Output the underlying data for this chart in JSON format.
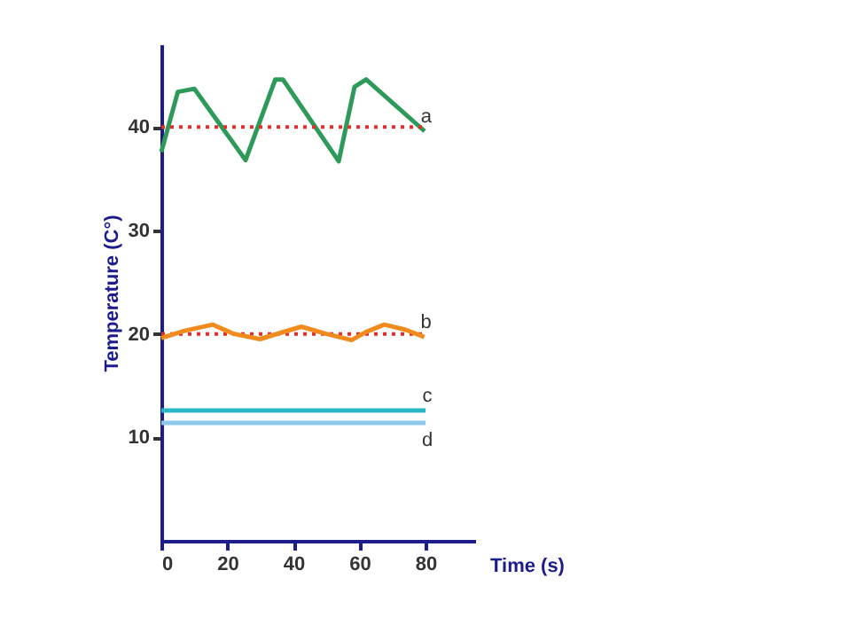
{
  "chart_data": {
    "type": "line",
    "xlabel": "Time (s)",
    "ylabel": "Temperature (C°)",
    "xlim": [
      0,
      95
    ],
    "ylim": [
      0,
      48
    ],
    "xticks": [
      0,
      20,
      40,
      60,
      80
    ],
    "yticks": [
      10,
      20,
      30,
      40
    ],
    "grid": false,
    "marker": "none",
    "line_style": "solid",
    "series": [
      {
        "name": "a",
        "color": "#2e9a5a",
        "x": [
          0,
          5,
          10,
          25.5,
          34.5,
          36.8,
          53.7,
          58.5,
          62,
          79.7
        ],
        "values": [
          37.6,
          43.4,
          43.7,
          36.8,
          44.6,
          44.6,
          36.7,
          43.9,
          44.6,
          39.6
        ]
      },
      {
        "name": "b",
        "color": "#f08c1e",
        "x": [
          0,
          7,
          15.6,
          22,
          29.9,
          36,
          42.4,
          50,
          57.6,
          62,
          67.5,
          74,
          79.6
        ],
        "values": [
          19.6,
          20.3,
          20.9,
          20.0,
          19.5,
          20.1,
          20.7,
          20.0,
          19.4,
          20.2,
          20.9,
          20.4,
          19.7
        ]
      },
      {
        "name": "c",
        "color": "#2ab8c8",
        "x": [
          0,
          80
        ],
        "values": [
          12.6,
          12.6
        ]
      },
      {
        "name": "d",
        "color": "#8cc8ec",
        "x": [
          0,
          80
        ],
        "values": [
          11.4,
          11.4
        ]
      }
    ],
    "ref_lines": [
      {
        "axis": "y",
        "value": 40,
        "color": "#e0302a",
        "line_style": "dotted"
      },
      {
        "axis": "y",
        "value": 20,
        "color": "#e0302a",
        "line_style": "dotted"
      }
    ]
  }
}
